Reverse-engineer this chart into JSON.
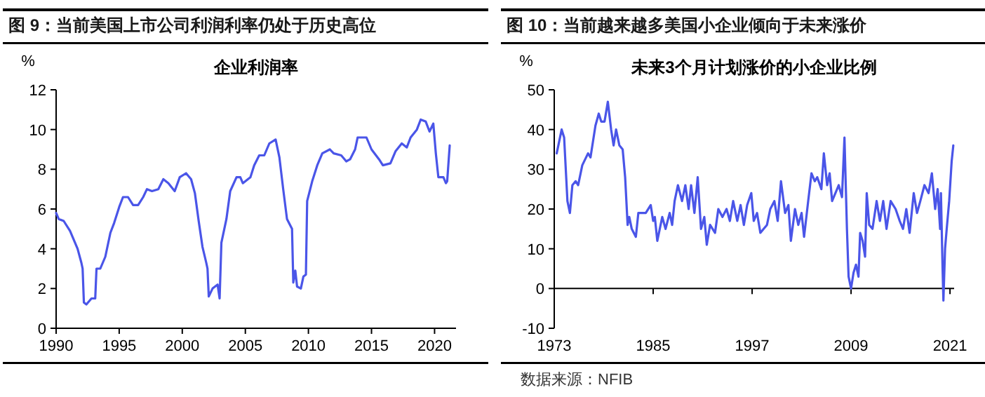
{
  "chart_data": [
    {
      "type": "line",
      "title": "图 9：当前美国上市公司利润利率仍处于历史高位",
      "subtitle": "企业利润率",
      "ylabel": "%",
      "xlim": [
        1990,
        2021.7
      ],
      "xticks": [
        1990,
        1995,
        2000,
        2005,
        2010,
        2015,
        2020
      ],
      "ylim": [
        0,
        12
      ],
      "yticks": [
        0,
        2,
        4,
        6,
        8,
        10,
        12
      ],
      "series": [
        {
          "color": "#4a55e8",
          "x": [
            1990.0,
            1990.2,
            1990.6,
            1991.1,
            1991.7,
            1992.0,
            1992.1,
            1992.2,
            1992.4,
            1992.8,
            1993.1,
            1993.2,
            1993.5,
            1993.9,
            1994.3,
            1994.6,
            1995.0,
            1995.3,
            1995.7,
            1996.1,
            1996.5,
            1996.9,
            1997.2,
            1997.6,
            1998.1,
            1998.5,
            1998.9,
            1999.4,
            1999.8,
            2000.3,
            2000.7,
            2001.0,
            2001.3,
            2001.6,
            2001.9,
            2002.0,
            2002.1,
            2002.4,
            2002.8,
            2002.96,
            2003.1,
            2003.5,
            2003.8,
            2004.3,
            2004.6,
            2004.8,
            2005.4,
            2005.7,
            2006.1,
            2006.5,
            2006.9,
            2007.4,
            2007.7,
            2008.0,
            2008.3,
            2008.7,
            2008.8,
            2008.96,
            2009.1,
            2009.4,
            2009.6,
            2009.8,
            2009.9,
            2010.3,
            2010.7,
            2011.1,
            2011.7,
            2012.0,
            2012.6,
            2013.0,
            2013.3,
            2013.7,
            2013.9,
            2014.6,
            2015.0,
            2015.6,
            2015.9,
            2016.5,
            2016.9,
            2017.4,
            2017.8,
            2018.1,
            2018.6,
            2018.9,
            2019.3,
            2019.6,
            2019.9,
            2020.1,
            2020.3,
            2020.7,
            2020.9,
            2021.0,
            2021.2
          ],
          "values": [
            5.8,
            5.5,
            5.4,
            4.9,
            4.0,
            3.3,
            3.0,
            1.3,
            1.2,
            1.5,
            1.5,
            3.0,
            3.0,
            3.6,
            4.8,
            5.3,
            6.1,
            6.6,
            6.6,
            6.2,
            6.2,
            6.6,
            7.0,
            6.9,
            7.0,
            7.5,
            7.3,
            6.9,
            7.6,
            7.8,
            7.5,
            6.8,
            5.4,
            4.1,
            3.3,
            3.0,
            1.6,
            2.0,
            2.2,
            1.5,
            4.3,
            5.5,
            6.9,
            7.6,
            7.6,
            7.3,
            7.6,
            8.2,
            8.7,
            8.7,
            9.3,
            9.5,
            8.6,
            7.0,
            5.5,
            5.0,
            2.3,
            2.9,
            2.1,
            2.0,
            2.6,
            2.7,
            6.4,
            7.4,
            8.2,
            8.8,
            9.0,
            8.8,
            8.7,
            8.4,
            8.5,
            9.0,
            9.6,
            9.6,
            9.0,
            8.5,
            8.2,
            8.3,
            8.9,
            9.3,
            9.1,
            9.6,
            10.0,
            10.5,
            10.4,
            9.9,
            10.3,
            8.8,
            7.6,
            7.6,
            7.3,
            7.4,
            9.2
          ]
        }
      ]
    },
    {
      "type": "line",
      "title": "图 10：当前越来越多美国小企业倾向于未来涨价",
      "subtitle": "未来3个月计划涨价的小企业比例",
      "ylabel": "%",
      "annotations": [
        "数据来源：NFIB"
      ],
      "xlim": [
        1973,
        2021.5
      ],
      "xticks": [
        1973,
        1985,
        1997,
        2009,
        2021
      ],
      "ylim": [
        -10,
        50
      ],
      "yticks": [
        -10,
        0,
        10,
        20,
        30,
        40,
        50
      ],
      "series": [
        {
          "color": "#4a55e8",
          "x": [
            1973.3,
            1973.9,
            1974.2,
            1974.6,
            1974.9,
            1975.2,
            1975.6,
            1975.9,
            1976.4,
            1977.1,
            1977.4,
            1978.0,
            1978.4,
            1978.7,
            1979.1,
            1979.5,
            1979.9,
            1980.2,
            1980.5,
            1980.9,
            1981.3,
            1981.6,
            1981.9,
            1982.1,
            1982.4,
            1982.9,
            1983.2,
            1984.1,
            1984.7,
            1985.0,
            1985.2,
            1985.5,
            1986.1,
            1986.5,
            1987.0,
            1987.3,
            1987.6,
            1988.0,
            1988.5,
            1988.9,
            1989.3,
            1989.6,
            1990.0,
            1990.4,
            1990.8,
            1991.2,
            1991.5,
            1991.9,
            1992.5,
            1992.9,
            1993.4,
            1993.9,
            1994.3,
            1994.7,
            1995.2,
            1995.6,
            1996.0,
            1996.4,
            1996.9,
            1997.2,
            1997.6,
            1998.0,
            1998.4,
            1998.8,
            1999.2,
            1999.7,
            2000.1,
            2000.5,
            2001.0,
            2001.4,
            2001.7,
            2002.2,
            2002.6,
            2003.0,
            2003.3,
            2003.8,
            2004.2,
            2004.6,
            2004.9,
            2005.4,
            2005.7,
            2006.1,
            2006.4,
            2006.7,
            2007.1,
            2007.5,
            2007.9,
            2008.2,
            2008.5,
            2008.7,
            2009.0,
            2009.3,
            2009.6,
            2009.9,
            2010.1,
            2010.4,
            2010.7,
            2010.9,
            2011.2,
            2011.6,
            2012.1,
            2012.5,
            2012.9,
            2013.3,
            2013.8,
            2014.4,
            2014.9,
            2015.3,
            2015.7,
            2016.1,
            2016.6,
            2017.0,
            2017.4,
            2017.9,
            2018.4,
            2018.8,
            2019.2,
            2019.5,
            2019.8,
            2019.9,
            2020.1,
            2020.2,
            2020.4,
            2020.6,
            2020.9,
            2021.2,
            2021.4
          ],
          "values": [
            34,
            40,
            38,
            22,
            19,
            26,
            27,
            26,
            31,
            34,
            33,
            41,
            44,
            42,
            42,
            47,
            40,
            36,
            40,
            36,
            35,
            28,
            16,
            18,
            15,
            13,
            19,
            19,
            21,
            17,
            18,
            12,
            18,
            15,
            19,
            16,
            22,
            26,
            22,
            26,
            20,
            26,
            19,
            28,
            15,
            18,
            11,
            16,
            14,
            20,
            18,
            20,
            17,
            22,
            17,
            21,
            16,
            21,
            24,
            17,
            19,
            14,
            15,
            16,
            20,
            22,
            17,
            27,
            19,
            21,
            12,
            20,
            16,
            19,
            13,
            22,
            29,
            27,
            28,
            25,
            34,
            26,
            29,
            22,
            24,
            26,
            23,
            38,
            15,
            3,
            0,
            4,
            6,
            3,
            14,
            12,
            8,
            24,
            16,
            15,
            22,
            17,
            22,
            15,
            22,
            20,
            17,
            15,
            20,
            14,
            24,
            19,
            22,
            26,
            24,
            29,
            20,
            25,
            15,
            24,
            5,
            -3,
            10,
            15,
            22,
            32,
            36
          ]
        }
      ]
    }
  ]
}
